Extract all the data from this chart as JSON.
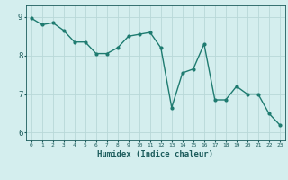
{
  "x": [
    0,
    1,
    2,
    3,
    4,
    5,
    6,
    7,
    8,
    9,
    10,
    11,
    12,
    13,
    14,
    15,
    16,
    17,
    18,
    19,
    20,
    21,
    22,
    23
  ],
  "y": [
    8.97,
    8.8,
    8.85,
    8.65,
    8.35,
    8.35,
    8.05,
    8.05,
    8.2,
    8.5,
    8.55,
    8.6,
    8.2,
    6.65,
    7.55,
    7.65,
    8.3,
    6.85,
    6.85,
    7.2,
    7.0,
    7.0,
    6.5,
    6.2
  ],
  "xlabel": "Humidex (Indice chaleur)",
  "line_color": "#1e7b70",
  "bg_color": "#d4eeee",
  "grid_color": "#b8d8d8",
  "tick_label_color": "#1a5a5a",
  "ylim": [
    5.8,
    9.3
  ],
  "yticks": [
    6,
    7,
    8,
    9
  ],
  "xlim": [
    -0.5,
    23.5
  ]
}
